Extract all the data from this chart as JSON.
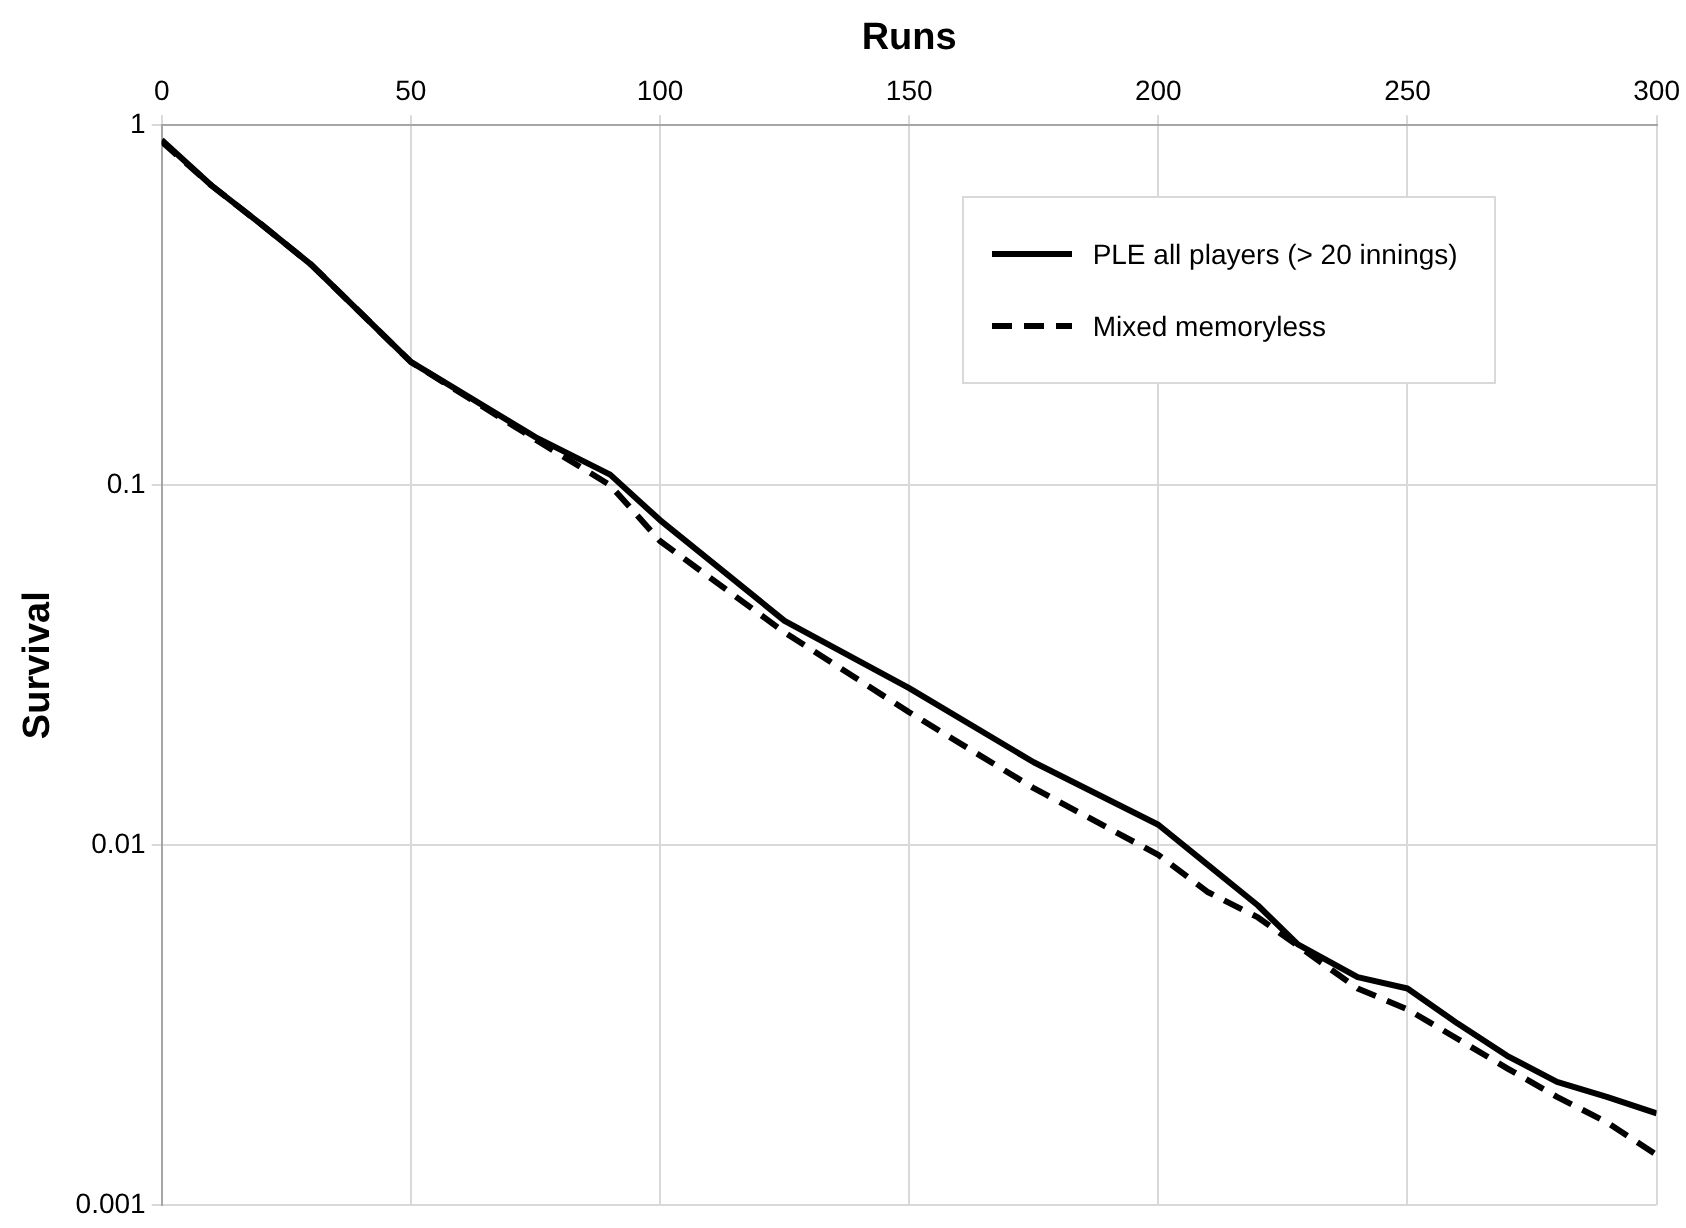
{
  "chart_data": {
    "type": "line",
    "xlabel": "Runs",
    "ylabel": "Survival",
    "xlim": [
      0,
      300
    ],
    "xticks": [
      0,
      50,
      100,
      150,
      200,
      250,
      300
    ],
    "ylim": [
      0.001,
      1
    ],
    "yticks": [
      0.001,
      0.01,
      0.1,
      1
    ],
    "log": "y",
    "grid": true,
    "legend": "top right",
    "marker": "none",
    "series": [
      {
        "name": "PLE all players (> 20 innings)",
        "color": "#000000",
        "line_style": "solid",
        "x": [
          0,
          10,
          20,
          30,
          50,
          75,
          90,
          100,
          125,
          150,
          175,
          200,
          210,
          220,
          228,
          240,
          250,
          260,
          270,
          280,
          290,
          300
        ],
        "values": [
          0.91,
          0.68,
          0.53,
          0.41,
          0.22,
          0.136,
          0.107,
          0.08,
          0.042,
          0.0273,
          0.017,
          0.0114,
          0.0088,
          0.0068,
          0.0053,
          0.0043,
          0.004,
          0.0032,
          0.0026,
          0.0022,
          0.002,
          0.0018
        ]
      },
      {
        "name": "Mixed memoryless",
        "color": "#000000",
        "line_style": "dashed",
        "x": [
          0,
          10,
          20,
          30,
          50,
          75,
          90,
          100,
          125,
          150,
          175,
          200,
          210,
          220,
          240,
          250,
          260,
          270,
          280,
          290,
          300
        ],
        "values": [
          0.9,
          0.68,
          0.53,
          0.41,
          0.22,
          0.134,
          0.1,
          0.07,
          0.039,
          0.0234,
          0.0144,
          0.0094,
          0.0074,
          0.0063,
          0.004,
          0.0035,
          0.0029,
          0.0024,
          0.002,
          0.0017,
          0.00138
        ]
      }
    ]
  }
}
